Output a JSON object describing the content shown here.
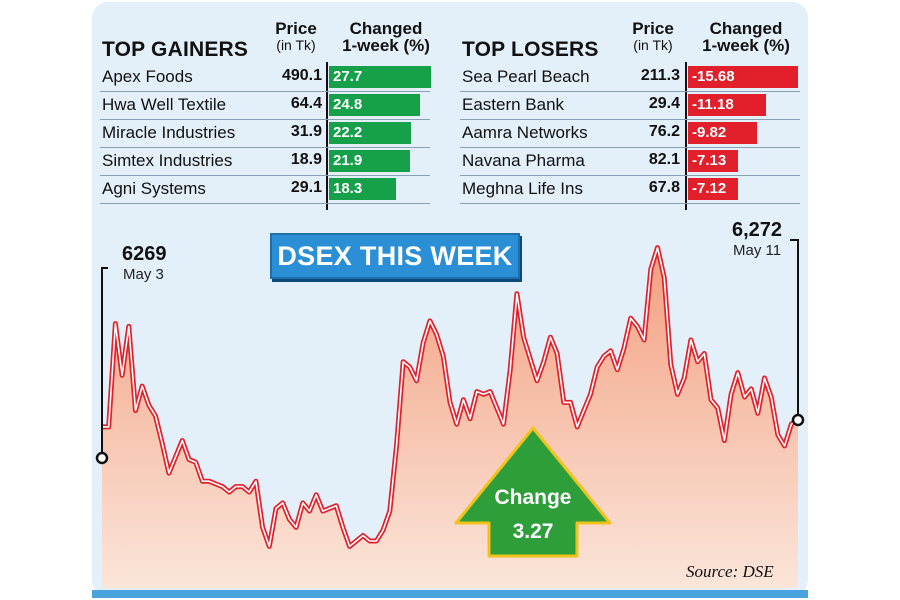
{
  "gainers": {
    "title": "TOP GAINERS",
    "price_header": "Price",
    "price_sub": "(in Tk)",
    "change_header": "Changed",
    "change_sub": "1-week (%)",
    "rows": [
      {
        "name": "Apex Foods",
        "price": "490.1",
        "change": "27.7"
      },
      {
        "name": "Hwa Well Textile",
        "price": "64.4",
        "change": "24.8"
      },
      {
        "name": "Miracle Industries",
        "price": "31.9",
        "change": "22.2"
      },
      {
        "name": "Simtex Industries",
        "price": "18.9",
        "change": "21.9"
      },
      {
        "name": "Agni Systems",
        "price": "29.1",
        "change": "18.3"
      }
    ]
  },
  "losers": {
    "title": "TOP LOSERS",
    "price_header": "Price",
    "price_sub": "(in Tk)",
    "change_header": "Changed",
    "change_sub": "1-week (%)",
    "rows": [
      {
        "name": "Sea Pearl Beach",
        "price": "211.3",
        "change": "-15.68"
      },
      {
        "name": "Eastern Bank",
        "price": "29.4",
        "change": "-11.18"
      },
      {
        "name": "Aamra Networks",
        "price": "76.2",
        "change": "-9.82"
      },
      {
        "name": "Navana Pharma",
        "price": "82.1",
        "change": "-7.13"
      },
      {
        "name": "Meghna Life Ins",
        "price": "67.8",
        "change": "-7.12"
      }
    ]
  },
  "colors": {
    "gain": "#16a04a",
    "loss": "#e2202b",
    "line": "#e2202b",
    "area": "#f7b59a",
    "arrow": "#2e9e3a",
    "title_bg": "#2b8fd6"
  },
  "chart_data": {
    "type": "line",
    "title": "DSEX THIS WEEK",
    "start": {
      "value": "6269",
      "date": "May 3"
    },
    "end": {
      "value": "6,272",
      "date": "May 11"
    },
    "change_label": "Change",
    "change_value": "3.27",
    "source": "Source: DSE",
    "series": [
      {
        "values": [
          6269,
          6269,
          6307,
          6288,
          6306,
          6275,
          6284,
          6277,
          6273,
          6263,
          6252,
          6258,
          6264,
          6257,
          6256,
          6249,
          6249,
          6248,
          6247,
          6245,
          6247,
          6247,
          6245,
          6249,
          6232,
          6225,
          6239,
          6241,
          6235,
          6232,
          6241,
          6238,
          6244,
          6238,
          6239,
          6240,
          6232,
          6225,
          6227,
          6229,
          6227,
          6227,
          6231,
          6238,
          6262,
          6293,
          6291,
          6286,
          6300,
          6308,
          6303,
          6295,
          6278,
          6270,
          6279,
          6272,
          6282,
          6281,
          6282,
          6276,
          6270,
          6290,
          6318,
          6302,
          6294,
          6286,
          6293,
          6302,
          6296,
          6278,
          6278,
          6269,
          6275,
          6281,
          6291,
          6295,
          6297,
          6290,
          6298,
          6309,
          6306,
          6301,
          6327,
          6335,
          6324,
          6292,
          6281,
          6287,
          6301,
          6293,
          6296,
          6279,
          6276,
          6264,
          6281,
          6289,
          6280,
          6283,
          6274,
          6287,
          6280,
          6266,
          6262,
          6270,
          6272
        ]
      }
    ]
  }
}
